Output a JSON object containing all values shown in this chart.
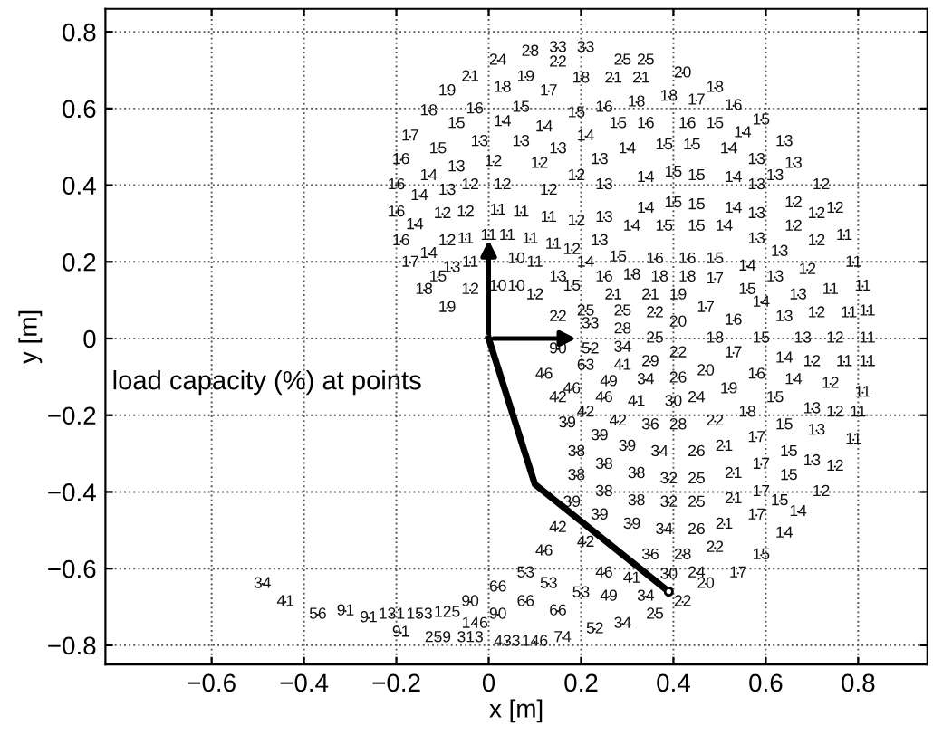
{
  "chart_data": {
    "type": "scatter",
    "xlabel": "x [m]",
    "ylabel": "y [m]",
    "grid": true,
    "line_style": "dotted",
    "color": "#111111",
    "x": [
      0.02,
      0.09,
      0.15,
      0.21,
      0.29,
      0.34,
      0.15,
      -0.04,
      0.08,
      0.27,
      0.33,
      0.42,
      -0.09,
      0.03,
      0.13,
      0.2,
      0.49,
      -0.13,
      -0.03,
      0.07,
      0.19,
      0.25,
      0.32,
      0.39,
      0.45,
      0.53,
      -0.07,
      0.03,
      0.12,
      0.21,
      0.28,
      0.34,
      0.43,
      0.49,
      0.55,
      0.59,
      -0.17,
      -0.11,
      -0.02,
      0.07,
      0.15,
      0.24,
      0.3,
      0.38,
      0.44,
      0.52,
      0.58,
      0.64,
      -0.19,
      -0.13,
      -0.07,
      0.01,
      0.11,
      0.34,
      0.4,
      0.45,
      0.53,
      0.58,
      0.62,
      0.66,
      0.72,
      -0.2,
      -0.15,
      -0.09,
      -0.04,
      0.03,
      0.13,
      0.19,
      0.25,
      0.34,
      0.4,
      0.45,
      0.53,
      0.58,
      0.66,
      0.71,
      0.75,
      -0.2,
      -0.16,
      -0.1,
      -0.05,
      0.02,
      0.07,
      0.13,
      0.19,
      0.25,
      0.31,
      0.38,
      0.45,
      0.51,
      0.58,
      0.66,
      0.71,
      0.77,
      -0.19,
      -0.13,
      -0.09,
      -0.05,
      0.0,
      0.04,
      0.09,
      0.14,
      0.18,
      0.24,
      0.36,
      0.43,
      0.49,
      0.56,
      0.63,
      0.79,
      -0.17,
      -0.08,
      -0.04,
      -0.11,
      -0.14,
      0.06,
      0.1,
      0.21,
      0.28,
      -0.04,
      0.02,
      0.06,
      0.1,
      0.15,
      0.18,
      0.25,
      0.31,
      0.27,
      0.37,
      0.43,
      0.49,
      0.62,
      0.69,
      0.56,
      0.74,
      0.81,
      0.35,
      0.41,
      0.47,
      0.59,
      0.67,
      -0.09,
      0.15,
      0.21,
      0.22,
      0.29,
      0.36,
      0.41,
      0.53,
      0.64,
      0.71,
      0.78,
      0.82,
      0.29,
      0.36,
      0.49,
      0.59,
      0.68,
      0.75,
      0.82,
      0.15,
      0.22,
      0.29,
      0.41,
      0.53,
      0.64,
      0.7,
      0.77,
      0.82,
      0.21,
      0.29,
      0.35,
      0.41,
      0.47,
      0.58,
      0.66,
      0.74,
      0.81,
      0.12,
      0.26,
      0.34,
      0.18,
      0.15,
      0.25,
      0.32,
      0.4,
      0.45,
      0.52,
      0.62,
      0.7,
      0.75,
      0.8,
      0.21,
      0.17,
      0.28,
      0.35,
      0.41,
      0.49,
      0.56,
      0.64,
      0.71,
      0.79,
      0.24,
      0.19,
      0.3,
      0.37,
      0.45,
      0.51,
      0.58,
      0.65,
      0.7,
      0.75,
      0.19,
      0.25,
      0.32,
      0.39,
      0.45,
      0.53,
      0.59,
      0.65,
      0.25,
      0.18,
      0.32,
      0.39,
      0.45,
      0.53,
      0.59,
      0.63,
      0.67,
      0.72,
      0.24,
      0.31,
      0.38,
      0.45,
      0.51,
      0.58,
      0.64,
      0.15,
      0.21,
      0.35,
      0.42,
      0.49,
      0.59,
      0.12,
      0.25,
      0.31,
      0.39,
      0.45,
      0.47,
      0.54,
      0.08,
      0.13,
      0.2,
      0.26,
      0.34,
      0.42,
      0.02,
      0.08,
      0.15,
      0.36,
      0.29,
      0.23,
      -0.04,
      0.02,
      -0.03,
      -0.09,
      -0.15,
      -0.21,
      -0.26,
      -0.31,
      -0.19,
      -0.11,
      -0.04,
      0.04,
      0.1,
      0.16,
      -0.49,
      -0.44,
      -0.37
    ],
    "values": [
      0.725,
      0.748,
      0.758,
      0.758,
      0.725,
      0.725,
      0.72,
      0.682,
      0.682,
      0.678,
      0.678,
      0.692,
      0.645,
      0.654,
      0.645,
      0.678,
      0.654,
      0.593,
      0.598,
      0.602,
      0.588,
      0.602,
      0.616,
      0.631,
      0.621,
      0.607,
      0.56,
      0.565,
      0.551,
      0.527,
      0.56,
      0.56,
      0.56,
      0.56,
      0.536,
      0.569,
      0.527,
      0.494,
      0.513,
      0.513,
      0.494,
      0.466,
      0.494,
      0.504,
      0.504,
      0.494,
      0.466,
      0.513,
      0.466,
      0.424,
      0.447,
      0.461,
      0.456,
      0.419,
      0.433,
      0.424,
      0.419,
      0.4,
      0.424,
      0.456,
      0.4,
      0.4,
      0.372,
      0.386,
      0.4,
      0.4,
      0.386,
      0.424,
      0.4,
      0.339,
      0.353,
      0.348,
      0.339,
      0.325,
      0.353,
      0.325,
      0.339,
      0.329,
      0.296,
      0.325,
      0.329,
      0.334,
      0.329,
      0.315,
      0.306,
      0.315,
      0.292,
      0.292,
      0.292,
      0.292,
      0.259,
      0.292,
      0.254,
      0.268,
      0.254,
      0.221,
      0.254,
      0.259,
      0.268,
      0.268,
      0.259,
      0.245,
      0.231,
      0.254,
      0.207,
      0.207,
      0.207,
      0.188,
      0.226,
      0.198,
      0.198,
      0.184,
      0.198,
      0.16,
      0.127,
      0.207,
      0.198,
      0.198,
      0.212,
      0.127,
      0.136,
      0.136,
      0.113,
      0.16,
      0.136,
      0.16,
      0.165,
      0.113,
      0.16,
      0.16,
      0.155,
      0.16,
      0.179,
      0.127,
      0.127,
      0.136,
      0.113,
      0.113,
      0.08,
      0.094,
      0.113,
      0.08,
      0.056,
      0.071,
      0.038,
      0.071,
      0.066,
      0.042,
      0.047,
      0.056,
      0.066,
      0.066,
      0.071,
      0.024,
      0.0,
      0.0,
      0.0,
      0.0,
      0.0,
      0.0,
      -0.028,
      -0.028,
      -0.024,
      -0.038,
      -0.038,
      -0.052,
      -0.061,
      -0.061,
      -0.061,
      -0.071,
      -0.071,
      -0.061,
      -0.104,
      -0.085,
      -0.094,
      -0.108,
      -0.118,
      -0.141,
      -0.094,
      -0.113,
      -0.108,
      -0.132,
      -0.155,
      -0.155,
      -0.165,
      -0.165,
      -0.155,
      -0.132,
      -0.155,
      -0.184,
      -0.193,
      -0.193,
      -0.193,
      -0.221,
      -0.216,
      -0.226,
      -0.226,
      -0.216,
      -0.193,
      -0.226,
      -0.24,
      -0.264,
      -0.254,
      -0.296,
      -0.282,
      -0.296,
      -0.296,
      -0.282,
      -0.259,
      -0.296,
      -0.32,
      -0.334,
      -0.358,
      -0.329,
      -0.353,
      -0.367,
      -0.367,
      -0.353,
      -0.329,
      -0.358,
      -0.4,
      -0.428,
      -0.424,
      -0.428,
      -0.428,
      -0.419,
      -0.4,
      -0.424,
      -0.452,
      -0.4,
      -0.461,
      -0.485,
      -0.499,
      -0.499,
      -0.485,
      -0.461,
      -0.508,
      -0.494,
      -0.532,
      -0.565,
      -0.565,
      -0.546,
      -0.565,
      -0.555,
      -0.612,
      -0.626,
      -0.616,
      -0.612,
      -0.64,
      -0.612,
      -0.612,
      -0.64,
      -0.664,
      -0.673,
      -0.673,
      -0.687,
      -0.649,
      -0.687,
      -0.711,
      -0.72,
      -0.744,
      -0.758,
      -0.687,
      -0.72,
      -0.744,
      -0.715,
      -0.72,
      -0.72,
      -0.729,
      -0.711,
      -0.767,
      -0.781,
      -0.781,
      -0.791,
      -0.791,
      -0.781,
      -0.64,
      -0.687,
      -0.72
    ],
    "xlim": [
      -0.83,
      0.95
    ],
    "ylim": [
      -0.85,
      0.86
    ],
    "xticks": [
      {
        "value": -0.6,
        "label": "−0.6"
      },
      {
        "value": -0.4,
        "label": "−0.4"
      },
      {
        "value": -0.2,
        "label": "−0.2"
      },
      0,
      0.2,
      0.4,
      0.6,
      0.8
    ],
    "yticks": [
      {
        "value": -0.8,
        "label": "−0.8"
      },
      {
        "value": -0.6,
        "label": "−0.6"
      },
      {
        "value": -0.4,
        "label": "−0.4"
      },
      {
        "value": -0.2,
        "label": "−0.2"
      },
      0,
      0.2,
      0.4,
      0.6,
      0.8
    ],
    "annotations": [
      "load capacity (%) at points",
      {
        "text": "24",
        "x": 0.02,
        "y": 0.725
      },
      {
        "text": "28",
        "x": 0.09,
        "y": 0.748
      },
      {
        "text": "33",
        "x": 0.15,
        "y": 0.758
      },
      {
        "text": "33",
        "x": 0.21,
        "y": 0.758
      },
      {
        "text": "25",
        "x": 0.29,
        "y": 0.725
      },
      {
        "text": "25",
        "x": 0.34,
        "y": 0.725
      },
      {
        "text": "22",
        "x": 0.15,
        "y": 0.72
      },
      {
        "text": "21",
        "x": -0.04,
        "y": 0.682
      },
      {
        "text": "19",
        "x": 0.08,
        "y": 0.682
      },
      {
        "text": "21",
        "x": 0.27,
        "y": 0.678
      },
      {
        "text": "21",
        "x": 0.33,
        "y": 0.678
      },
      {
        "text": "20",
        "x": 0.42,
        "y": 0.692
      },
      {
        "text": "19",
        "x": -0.09,
        "y": 0.645
      },
      {
        "text": "18",
        "x": 0.03,
        "y": 0.654
      },
      {
        "text": "17",
        "x": 0.13,
        "y": 0.645
      },
      {
        "text": "18",
        "x": 0.2,
        "y": 0.678
      },
      {
        "text": "18",
        "x": 0.49,
        "y": 0.654
      },
      {
        "text": "18",
        "x": -0.13,
        "y": 0.593
      },
      {
        "text": "16",
        "x": -0.03,
        "y": 0.598
      },
      {
        "text": "15",
        "x": 0.07,
        "y": 0.602
      },
      {
        "text": "15",
        "x": 0.19,
        "y": 0.588
      },
      {
        "text": "16",
        "x": 0.25,
        "y": 0.602
      },
      {
        "text": "18",
        "x": 0.32,
        "y": 0.616
      },
      {
        "text": "18",
        "x": 0.39,
        "y": 0.631
      },
      {
        "text": "17",
        "x": 0.45,
        "y": 0.621
      },
      {
        "text": "16",
        "x": 0.53,
        "y": 0.607
      },
      {
        "text": "15",
        "x": -0.07,
        "y": 0.56
      },
      {
        "text": "14",
        "x": 0.03,
        "y": 0.565
      },
      {
        "text": "14",
        "x": 0.12,
        "y": 0.551
      },
      {
        "text": "14",
        "x": 0.21,
        "y": 0.527
      },
      {
        "text": "15",
        "x": 0.28,
        "y": 0.56
      },
      {
        "text": "16",
        "x": 0.34,
        "y": 0.56
      },
      {
        "text": "16",
        "x": 0.43,
        "y": 0.56
      },
      {
        "text": "15",
        "x": 0.49,
        "y": 0.56
      },
      {
        "text": "14",
        "x": 0.55,
        "y": 0.536
      },
      {
        "text": "15",
        "x": 0.59,
        "y": 0.569
      },
      {
        "text": "17",
        "x": -0.17,
        "y": 0.527
      },
      {
        "text": "15",
        "x": -0.11,
        "y": 0.494
      },
      {
        "text": "13",
        "x": -0.02,
        "y": 0.513
      },
      {
        "text": "13",
        "x": 0.07,
        "y": 0.513
      },
      {
        "text": "13",
        "x": 0.15,
        "y": 0.494
      },
      {
        "text": "13",
        "x": 0.24,
        "y": 0.466
      },
      {
        "text": "14",
        "x": 0.3,
        "y": 0.494
      },
      {
        "text": "15",
        "x": 0.38,
        "y": 0.504
      },
      {
        "text": "15",
        "x": 0.44,
        "y": 0.504
      },
      {
        "text": "14",
        "x": 0.52,
        "y": 0.494
      },
      {
        "text": "13",
        "x": 0.58,
        "y": 0.466
      },
      {
        "text": "13",
        "x": 0.64,
        "y": 0.513
      },
      {
        "text": "16",
        "x": -0.19,
        "y": 0.466
      },
      {
        "text": "14",
        "x": -0.13,
        "y": 0.424
      },
      {
        "text": "13",
        "x": -0.07,
        "y": 0.447
      },
      {
        "text": "12",
        "x": 0.01,
        "y": 0.461
      },
      {
        "text": "12",
        "x": 0.11,
        "y": 0.456
      },
      {
        "text": "14",
        "x": 0.34,
        "y": 0.419
      },
      {
        "text": "15",
        "x": 0.4,
        "y": 0.433
      },
      {
        "text": "15",
        "x": 0.45,
        "y": 0.424
      },
      {
        "text": "14",
        "x": 0.53,
        "y": 0.419
      },
      {
        "text": "13",
        "x": 0.58,
        "y": 0.4
      },
      {
        "text": "13",
        "x": 0.62,
        "y": 0.424
      },
      {
        "text": "13",
        "x": 0.66,
        "y": 0.456
      },
      {
        "text": "12",
        "x": 0.72,
        "y": 0.4
      },
      {
        "text": "16",
        "x": -0.2,
        "y": 0.4
      },
      {
        "text": "14",
        "x": -0.15,
        "y": 0.372
      },
      {
        "text": "13",
        "x": -0.09,
        "y": 0.386
      },
      {
        "text": "12",
        "x": -0.04,
        "y": 0.4
      },
      {
        "text": "12",
        "x": 0.03,
        "y": 0.4
      },
      {
        "text": "12",
        "x": 0.13,
        "y": 0.386
      },
      {
        "text": "12",
        "x": 0.19,
        "y": 0.424
      },
      {
        "text": "13",
        "x": 0.25,
        "y": 0.4
      },
      {
        "text": "14",
        "x": 0.34,
        "y": 0.339
      },
      {
        "text": "15",
        "x": 0.4,
        "y": 0.353
      },
      {
        "text": "15",
        "x": 0.45,
        "y": 0.348
      },
      {
        "text": "14",
        "x": 0.53,
        "y": 0.339
      },
      {
        "text": "13",
        "x": 0.58,
        "y": 0.325
      },
      {
        "text": "12",
        "x": 0.66,
        "y": 0.353
      },
      {
        "text": "12",
        "x": 0.71,
        "y": 0.325
      },
      {
        "text": "12",
        "x": 0.75,
        "y": 0.339
      },
      {
        "text": "16",
        "x": -0.2,
        "y": 0.329
      },
      {
        "text": "14",
        "x": -0.16,
        "y": 0.296
      },
      {
        "text": "12",
        "x": -0.1,
        "y": 0.325
      },
      {
        "text": "12",
        "x": -0.05,
        "y": 0.329
      },
      {
        "text": "11",
        "x": 0.02,
        "y": 0.334
      },
      {
        "text": "11",
        "x": 0.07,
        "y": 0.329
      },
      {
        "text": "11",
        "x": 0.13,
        "y": 0.315
      },
      {
        "text": "12",
        "x": 0.19,
        "y": 0.306
      },
      {
        "text": "13",
        "x": 0.25,
        "y": 0.315
      },
      {
        "text": "14",
        "x": 0.31,
        "y": 0.292
      },
      {
        "text": "15",
        "x": 0.38,
        "y": 0.292
      },
      {
        "text": "15",
        "x": 0.45,
        "y": 0.292
      },
      {
        "text": "14",
        "x": 0.51,
        "y": 0.292
      },
      {
        "text": "13",
        "x": 0.58,
        "y": 0.259
      },
      {
        "text": "12",
        "x": 0.66,
        "y": 0.292
      },
      {
        "text": "12",
        "x": 0.71,
        "y": 0.254
      },
      {
        "text": "11",
        "x": 0.77,
        "y": 0.268
      },
      {
        "text": "16",
        "x": -0.19,
        "y": 0.254
      },
      {
        "text": "14",
        "x": -0.13,
        "y": 0.221
      },
      {
        "text": "12",
        "x": -0.09,
        "y": 0.254
      },
      {
        "text": "11",
        "x": -0.05,
        "y": 0.259
      },
      {
        "text": "11",
        "x": 0.0,
        "y": 0.268
      },
      {
        "text": "11",
        "x": 0.04,
        "y": 0.268
      },
      {
        "text": "11",
        "x": 0.09,
        "y": 0.259
      },
      {
        "text": "11",
        "x": 0.14,
        "y": 0.245
      },
      {
        "text": "12",
        "x": 0.18,
        "y": 0.231
      },
      {
        "text": "13",
        "x": 0.24,
        "y": 0.254
      },
      {
        "text": "16",
        "x": 0.36,
        "y": 0.207
      },
      {
        "text": "16",
        "x": 0.43,
        "y": 0.207
      },
      {
        "text": "15",
        "x": 0.49,
        "y": 0.207
      },
      {
        "text": "14",
        "x": 0.56,
        "y": 0.188
      },
      {
        "text": "13",
        "x": 0.63,
        "y": 0.226
      },
      {
        "text": "11",
        "x": 0.79,
        "y": 0.198
      },
      {
        "text": "17",
        "x": -0.17,
        "y": 0.198
      },
      {
        "text": "13",
        "x": -0.08,
        "y": 0.184
      },
      {
        "text": "11",
        "x": -0.04,
        "y": 0.198
      },
      {
        "text": "15",
        "x": -0.11,
        "y": 0.16
      },
      {
        "text": "18",
        "x": -0.14,
        "y": 0.127
      },
      {
        "text": "10",
        "x": 0.06,
        "y": 0.207
      },
      {
        "text": "11",
        "x": 0.1,
        "y": 0.198
      },
      {
        "text": "14",
        "x": 0.21,
        "y": 0.198
      },
      {
        "text": "15",
        "x": 0.28,
        "y": 0.212
      },
      {
        "text": "12",
        "x": -0.04,
        "y": 0.127
      },
      {
        "text": "10",
        "x": 0.02,
        "y": 0.136
      },
      {
        "text": "10",
        "x": 0.06,
        "y": 0.136
      },
      {
        "text": "12",
        "x": 0.1,
        "y": 0.113
      },
      {
        "text": "13",
        "x": 0.15,
        "y": 0.16
      },
      {
        "text": "15",
        "x": 0.18,
        "y": 0.136
      },
      {
        "text": "16",
        "x": 0.25,
        "y": 0.16
      },
      {
        "text": "18",
        "x": 0.31,
        "y": 0.165
      },
      {
        "text": "21",
        "x": 0.27,
        "y": 0.113
      },
      {
        "text": "18",
        "x": 0.37,
        "y": 0.16
      },
      {
        "text": "18",
        "x": 0.43,
        "y": 0.16
      },
      {
        "text": "17",
        "x": 0.49,
        "y": 0.155
      },
      {
        "text": "13",
        "x": 0.62,
        "y": 0.16
      },
      {
        "text": "12",
        "x": 0.69,
        "y": 0.179
      },
      {
        "text": "15",
        "x": 0.56,
        "y": 0.127
      },
      {
        "text": "11",
        "x": 0.74,
        "y": 0.127
      },
      {
        "text": "11",
        "x": 0.81,
        "y": 0.136
      },
      {
        "text": "21",
        "x": 0.35,
        "y": 0.113
      },
      {
        "text": "19",
        "x": 0.41,
        "y": 0.113
      },
      {
        "text": "17",
        "x": 0.47,
        "y": 0.08
      },
      {
        "text": "14",
        "x": 0.59,
        "y": 0.094
      },
      {
        "text": "13",
        "x": 0.67,
        "y": 0.113
      },
      {
        "text": "19",
        "x": -0.09,
        "y": 0.08
      },
      {
        "text": "22",
        "x": 0.15,
        "y": 0.056
      },
      {
        "text": "25",
        "x": 0.21,
        "y": 0.071
      },
      {
        "text": "33",
        "x": 0.22,
        "y": 0.038
      },
      {
        "text": "25",
        "x": 0.29,
        "y": 0.071
      },
      {
        "text": "22",
        "x": 0.36,
        "y": 0.066
      },
      {
        "text": "20",
        "x": 0.41,
        "y": 0.042
      },
      {
        "text": "16",
        "x": 0.53,
        "y": 0.047
      },
      {
        "text": "13",
        "x": 0.64,
        "y": 0.056
      },
      {
        "text": "12",
        "x": 0.71,
        "y": 0.066
      },
      {
        "text": "11",
        "x": 0.78,
        "y": 0.066
      },
      {
        "text": "11",
        "x": 0.82,
        "y": 0.071
      },
      {
        "text": "28",
        "x": 0.29,
        "y": 0.024
      },
      {
        "text": "25",
        "x": 0.36,
        "y": 0.0
      },
      {
        "text": "18",
        "x": 0.49,
        "y": 0.0
      },
      {
        "text": "15",
        "x": 0.59,
        "y": 0.0
      },
      {
        "text": "13",
        "x": 0.68,
        "y": 0.0
      },
      {
        "text": "12",
        "x": 0.75,
        "y": 0.0
      },
      {
        "text": "11",
        "x": 0.82,
        "y": 0.0
      },
      {
        "text": "90",
        "x": 0.15,
        "y": -0.028
      },
      {
        "text": "52",
        "x": 0.22,
        "y": -0.028
      },
      {
        "text": "34",
        "x": 0.29,
        "y": -0.024
      },
      {
        "text": "22",
        "x": 0.41,
        "y": -0.038
      },
      {
        "text": "17",
        "x": 0.53,
        "y": -0.038
      },
      {
        "text": "14",
        "x": 0.64,
        "y": -0.052
      },
      {
        "text": "12",
        "x": 0.7,
        "y": -0.061
      },
      {
        "text": "11",
        "x": 0.77,
        "y": -0.061
      },
      {
        "text": "11",
        "x": 0.82,
        "y": -0.061
      },
      {
        "text": "63",
        "x": 0.21,
        "y": -0.071
      },
      {
        "text": "41",
        "x": 0.29,
        "y": -0.071
      },
      {
        "text": "29",
        "x": 0.35,
        "y": -0.061
      },
      {
        "text": "26",
        "x": 0.41,
        "y": -0.104
      },
      {
        "text": "20",
        "x": 0.47,
        "y": -0.085
      },
      {
        "text": "16",
        "x": 0.58,
        "y": -0.094
      },
      {
        "text": "14",
        "x": 0.66,
        "y": -0.108
      },
      {
        "text": "12",
        "x": 0.74,
        "y": -0.118
      },
      {
        "text": "11",
        "x": 0.81,
        "y": -0.141
      },
      {
        "text": "46",
        "x": 0.12,
        "y": -0.094
      },
      {
        "text": "49",
        "x": 0.26,
        "y": -0.113
      },
      {
        "text": "34",
        "x": 0.34,
        "y": -0.108
      },
      {
        "text": "46",
        "x": 0.18,
        "y": -0.132
      },
      {
        "text": "42",
        "x": 0.15,
        "y": -0.155
      },
      {
        "text": "46",
        "x": 0.25,
        "y": -0.155
      },
      {
        "text": "41",
        "x": 0.32,
        "y": -0.165
      },
      {
        "text": "30",
        "x": 0.4,
        "y": -0.165
      },
      {
        "text": "24",
        "x": 0.45,
        "y": -0.155
      },
      {
        "text": "19",
        "x": 0.52,
        "y": -0.132
      },
      {
        "text": "15",
        "x": 0.62,
        "y": -0.155
      },
      {
        "text": "13",
        "x": 0.7,
        "y": -0.184
      },
      {
        "text": "12",
        "x": 0.75,
        "y": -0.193
      },
      {
        "text": "11",
        "x": 0.8,
        "y": -0.193
      },
      {
        "text": "42",
        "x": 0.21,
        "y": -0.193
      },
      {
        "text": "39",
        "x": 0.17,
        "y": -0.221
      },
      {
        "text": "42",
        "x": 0.28,
        "y": -0.216
      },
      {
        "text": "36",
        "x": 0.35,
        "y": -0.226
      },
      {
        "text": "28",
        "x": 0.41,
        "y": -0.226
      },
      {
        "text": "22",
        "x": 0.49,
        "y": -0.216
      },
      {
        "text": "18",
        "x": 0.56,
        "y": -0.193
      },
      {
        "text": "15",
        "x": 0.64,
        "y": -0.226
      },
      {
        "text": "13",
        "x": 0.71,
        "y": -0.24
      },
      {
        "text": "11",
        "x": 0.79,
        "y": -0.264
      },
      {
        "text": "39",
        "x": 0.24,
        "y": -0.254
      },
      {
        "text": "38",
        "x": 0.19,
        "y": -0.296
      },
      {
        "text": "39",
        "x": 0.3,
        "y": -0.282
      },
      {
        "text": "34",
        "x": 0.37,
        "y": -0.296
      },
      {
        "text": "26",
        "x": 0.45,
        "y": -0.296
      },
      {
        "text": "21",
        "x": 0.51,
        "y": -0.282
      },
      {
        "text": "17",
        "x": 0.58,
        "y": -0.259
      },
      {
        "text": "15",
        "x": 0.65,
        "y": -0.296
      },
      {
        "text": "13",
        "x": 0.7,
        "y": -0.32
      },
      {
        "text": "12",
        "x": 0.75,
        "y": -0.334
      },
      {
        "text": "38",
        "x": 0.19,
        "y": -0.358
      },
      {
        "text": "38",
        "x": 0.25,
        "y": -0.329
      },
      {
        "text": "38",
        "x": 0.32,
        "y": -0.353
      },
      {
        "text": "32",
        "x": 0.39,
        "y": -0.367
      },
      {
        "text": "25",
        "x": 0.45,
        "y": -0.367
      },
      {
        "text": "21",
        "x": 0.53,
        "y": -0.353
      },
      {
        "text": "17",
        "x": 0.59,
        "y": -0.329
      },
      {
        "text": "15",
        "x": 0.65,
        "y": -0.358
      },
      {
        "text": "38",
        "x": 0.25,
        "y": -0.4
      },
      {
        "text": "39",
        "x": 0.18,
        "y": -0.428
      },
      {
        "text": "38",
        "x": 0.32,
        "y": -0.424
      },
      {
        "text": "32",
        "x": 0.39,
        "y": -0.428
      },
      {
        "text": "25",
        "x": 0.45,
        "y": -0.428
      },
      {
        "text": "21",
        "x": 0.53,
        "y": -0.419
      },
      {
        "text": "17",
        "x": 0.59,
        "y": -0.4
      },
      {
        "text": "15",
        "x": 0.63,
        "y": -0.424
      },
      {
        "text": "14",
        "x": 0.67,
        "y": -0.452
      },
      {
        "text": "12",
        "x": 0.72,
        "y": -0.4
      },
      {
        "text": "39",
        "x": 0.24,
        "y": -0.461
      },
      {
        "text": "39",
        "x": 0.31,
        "y": -0.485
      },
      {
        "text": "34",
        "x": 0.38,
        "y": -0.499
      },
      {
        "text": "26",
        "x": 0.45,
        "y": -0.499
      },
      {
        "text": "21",
        "x": 0.51,
        "y": -0.485
      },
      {
        "text": "17",
        "x": 0.58,
        "y": -0.461
      },
      {
        "text": "14",
        "x": 0.64,
        "y": -0.508
      },
      {
        "text": "42",
        "x": 0.15,
        "y": -0.494
      },
      {
        "text": "42",
        "x": 0.21,
        "y": -0.532
      },
      {
        "text": "36",
        "x": 0.35,
        "y": -0.565
      },
      {
        "text": "28",
        "x": 0.42,
        "y": -0.565
      },
      {
        "text": "22",
        "x": 0.49,
        "y": -0.546
      },
      {
        "text": "15",
        "x": 0.59,
        "y": -0.565
      },
      {
        "text": "46",
        "x": 0.12,
        "y": -0.555
      },
      {
        "text": "46",
        "x": 0.25,
        "y": -0.612
      },
      {
        "text": "41",
        "x": 0.31,
        "y": -0.626
      },
      {
        "text": "30",
        "x": 0.39,
        "y": -0.616
      },
      {
        "text": "24",
        "x": 0.45,
        "y": -0.612
      },
      {
        "text": "20",
        "x": 0.47,
        "y": -0.64
      },
      {
        "text": "17",
        "x": 0.54,
        "y": -0.612
      },
      {
        "text": "53",
        "x": 0.08,
        "y": -0.612
      },
      {
        "text": "53",
        "x": 0.13,
        "y": -0.64
      },
      {
        "text": "53",
        "x": 0.2,
        "y": -0.664
      },
      {
        "text": "49",
        "x": 0.26,
        "y": -0.673
      },
      {
        "text": "34",
        "x": 0.34,
        "y": -0.673
      },
      {
        "text": "22",
        "x": 0.42,
        "y": -0.687
      },
      {
        "text": "66",
        "x": 0.02,
        "y": -0.649
      },
      {
        "text": "66",
        "x": 0.08,
        "y": -0.687
      },
      {
        "text": "66",
        "x": 0.15,
        "y": -0.711
      },
      {
        "text": "25",
        "x": 0.36,
        "y": -0.72
      },
      {
        "text": "34",
        "x": 0.29,
        "y": -0.744
      },
      {
        "text": "52",
        "x": 0.23,
        "y": -0.758
      },
      {
        "text": "90",
        "x": -0.04,
        "y": -0.687
      },
      {
        "text": "90",
        "x": 0.02,
        "y": -0.72
      },
      {
        "text": "146",
        "x": -0.03,
        "y": -0.744
      },
      {
        "text": "125",
        "x": -0.09,
        "y": -0.715
      },
      {
        "text": "153",
        "x": -0.15,
        "y": -0.72
      },
      {
        "text": "131",
        "x": -0.21,
        "y": -0.72
      },
      {
        "text": "91",
        "x": -0.26,
        "y": -0.729
      },
      {
        "text": "91",
        "x": -0.31,
        "y": -0.711
      },
      {
        "text": "91",
        "x": -0.19,
        "y": -0.767
      },
      {
        "text": "259",
        "x": -0.11,
        "y": -0.781
      },
      {
        "text": "313",
        "x": -0.04,
        "y": -0.781
      },
      {
        "text": "433",
        "x": 0.04,
        "y": -0.791
      },
      {
        "text": "146",
        "x": 0.1,
        "y": -0.791
      },
      {
        "text": "74",
        "x": 0.16,
        "y": -0.781
      },
      {
        "text": "34",
        "x": -0.49,
        "y": -0.64
      },
      {
        "text": "41",
        "x": -0.44,
        "y": -0.687
      },
      {
        "text": "56",
        "x": -0.37,
        "y": -0.72
      }
    ]
  }
}
